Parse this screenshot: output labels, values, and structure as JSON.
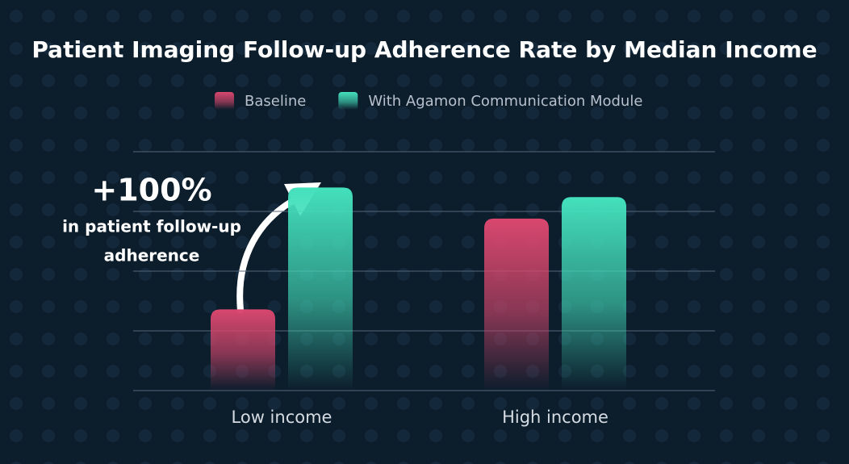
{
  "chart_data": {
    "type": "bar",
    "title": "Patient Imaging Follow-up Adherence Rate by Median Income",
    "categories": [
      "Low income",
      "High income"
    ],
    "series": [
      {
        "name": "Baseline",
        "color": "#d9476e",
        "values": [
          34,
          72
        ]
      },
      {
        "name": "With Agamon Communication Module",
        "color": "#44e0bc",
        "values": [
          85,
          81
        ]
      }
    ],
    "ylim": [
      0,
      100
    ],
    "yticks": [
      0,
      25,
      50,
      75,
      100
    ],
    "grid": true,
    "legend": "top",
    "annotations": [
      "+100%",
      "in patient follow-up",
      "adherence"
    ]
  }
}
